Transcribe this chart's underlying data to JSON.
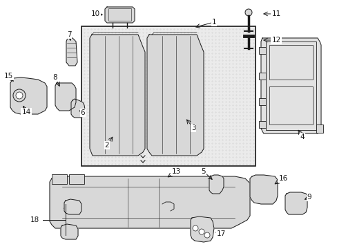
{
  "bg_color": "#ffffff",
  "line_color": "#1a1a1a",
  "fill_light": "#e8e8e8",
  "fill_mid": "#d8d8d8",
  "fill_dark": "#c8c8c8",
  "figsize": [
    4.89,
    3.6
  ],
  "dpi": 100,
  "font_size": 7.5
}
